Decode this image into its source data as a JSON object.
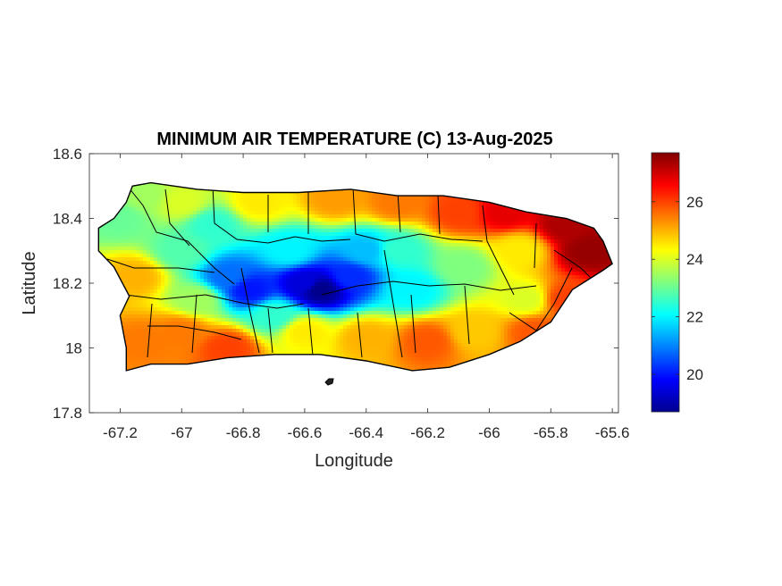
{
  "chart_data": {
    "type": "heatmap",
    "title": "MINIMUM AIR TEMPERATURE (C) 13-Aug-2025",
    "xlabel": "Longitude",
    "ylabel": "Latitude",
    "xlim": [
      -67.3,
      -65.58
    ],
    "ylim": [
      17.8,
      18.6
    ],
    "x_ticks": [
      -67.2,
      -67,
      -66.8,
      -66.6,
      -66.4,
      -66.2,
      -66,
      -65.8,
      -65.6
    ],
    "x_tick_labels": [
      "-67.2",
      "-67",
      "-66.8",
      "-66.6",
      "-66.4",
      "-66.2",
      "-66",
      "-65.8",
      "-65.6"
    ],
    "y_ticks": [
      17.8,
      18,
      18.2,
      18.4,
      18.6
    ],
    "y_tick_labels": [
      "17.8",
      "18",
      "18.2",
      "18.4",
      "18.6"
    ],
    "colormap": "jet",
    "colorbar": {
      "range": [
        18.7,
        27.7
      ],
      "ticks": [
        20,
        22,
        24,
        26
      ],
      "tick_labels": [
        "20",
        "22",
        "24",
        "26"
      ],
      "placement": "right"
    },
    "grid": false,
    "region": "Puerto Rico",
    "coastline": [
      [
        -67.27,
        18.37
      ],
      [
        -67.22,
        18.4
      ],
      [
        -67.18,
        18.45
      ],
      [
        -67.16,
        18.5
      ],
      [
        -67.1,
        18.51
      ],
      [
        -66.95,
        18.49
      ],
      [
        -66.8,
        18.48
      ],
      [
        -66.62,
        18.48
      ],
      [
        -66.45,
        18.49
      ],
      [
        -66.3,
        18.47
      ],
      [
        -66.15,
        18.47
      ],
      [
        -66.0,
        18.45
      ],
      [
        -65.88,
        18.42
      ],
      [
        -65.75,
        18.4
      ],
      [
        -65.66,
        18.37
      ],
      [
        -65.63,
        18.33
      ],
      [
        -65.6,
        18.26
      ],
      [
        -65.63,
        18.24
      ],
      [
        -65.73,
        18.18
      ],
      [
        -65.8,
        18.08
      ],
      [
        -65.9,
        18.02
      ],
      [
        -66.0,
        17.98
      ],
      [
        -66.13,
        17.94
      ],
      [
        -66.25,
        17.93
      ],
      [
        -66.4,
        17.96
      ],
      [
        -66.55,
        17.98
      ],
      [
        -66.7,
        17.98
      ],
      [
        -66.85,
        17.97
      ],
      [
        -66.98,
        17.95
      ],
      [
        -67.1,
        17.95
      ],
      [
        -67.18,
        17.93
      ],
      [
        -67.18,
        18.0
      ],
      [
        -67.2,
        18.1
      ],
      [
        -67.17,
        18.16
      ],
      [
        -67.22,
        18.25
      ],
      [
        -67.27,
        18.3
      ]
    ],
    "temperature_samples": [
      {
        "lon": -67.2,
        "lat": 18.4,
        "t": 23.0
      },
      {
        "lon": -67.12,
        "lat": 18.47,
        "t": 23.5
      },
      {
        "lon": -67.15,
        "lat": 18.22,
        "t": 25.0
      },
      {
        "lon": -67.12,
        "lat": 18.02,
        "t": 25.5
      },
      {
        "lon": -67.0,
        "lat": 18.45,
        "t": 24.0
      },
      {
        "lon": -67.0,
        "lat": 18.3,
        "t": 22.8
      },
      {
        "lon": -67.0,
        "lat": 18.05,
        "t": 25.5
      },
      {
        "lon": -66.9,
        "lat": 18.38,
        "t": 22.5
      },
      {
        "lon": -66.85,
        "lat": 18.22,
        "t": 20.8
      },
      {
        "lon": -66.78,
        "lat": 18.18,
        "t": 20.0
      },
      {
        "lon": -66.85,
        "lat": 18.0,
        "t": 26.0
      },
      {
        "lon": -66.75,
        "lat": 18.45,
        "t": 24.5
      },
      {
        "lon": -66.65,
        "lat": 18.3,
        "t": 22.0
      },
      {
        "lon": -66.6,
        "lat": 18.2,
        "t": 19.5
      },
      {
        "lon": -66.55,
        "lat": 18.18,
        "t": 18.8
      },
      {
        "lon": -66.6,
        "lat": 18.05,
        "t": 24.5
      },
      {
        "lon": -66.5,
        "lat": 18.46,
        "t": 25.2
      },
      {
        "lon": -66.45,
        "lat": 18.22,
        "t": 20.2
      },
      {
        "lon": -66.4,
        "lat": 18.3,
        "t": 21.5
      },
      {
        "lon": -66.4,
        "lat": 18.03,
        "t": 25.0
      },
      {
        "lon": -66.3,
        "lat": 18.45,
        "t": 25.5
      },
      {
        "lon": -66.25,
        "lat": 18.18,
        "t": 22.0
      },
      {
        "lon": -66.2,
        "lat": 18.02,
        "t": 25.8
      },
      {
        "lon": -66.1,
        "lat": 18.42,
        "t": 26.0
      },
      {
        "lon": -66.08,
        "lat": 18.25,
        "t": 23.2
      },
      {
        "lon": -66.05,
        "lat": 18.05,
        "t": 24.8
      },
      {
        "lon": -65.95,
        "lat": 18.42,
        "t": 26.8
      },
      {
        "lon": -65.9,
        "lat": 18.3,
        "t": 24.5
      },
      {
        "lon": -65.88,
        "lat": 18.15,
        "t": 24.0
      },
      {
        "lon": -65.85,
        "lat": 18.05,
        "t": 25.8
      },
      {
        "lon": -65.75,
        "lat": 18.38,
        "t": 27.3
      },
      {
        "lon": -65.68,
        "lat": 18.3,
        "t": 27.5
      },
      {
        "lon": -65.75,
        "lat": 18.15,
        "t": 26.0
      },
      {
        "lon": -66.7,
        "lat": 18.1,
        "t": 22.5
      },
      {
        "lon": -66.95,
        "lat": 18.15,
        "t": 23.5
      },
      {
        "lon": -66.3,
        "lat": 18.3,
        "t": 22.5
      }
    ]
  }
}
